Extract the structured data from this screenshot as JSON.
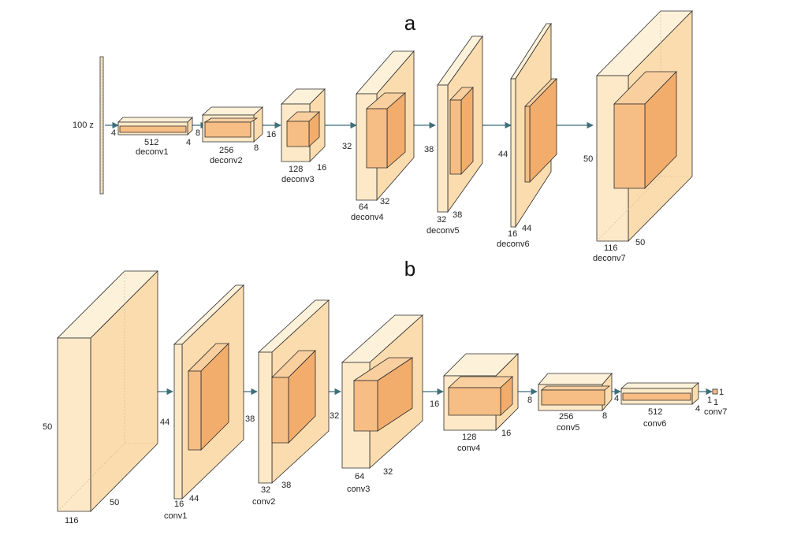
{
  "panels": {
    "a": {
      "title": "a",
      "input_label": "100 z",
      "layers": [
        {
          "name": "deconv1",
          "channels": "512",
          "size_a": "4",
          "size_b": "4"
        },
        {
          "name": "deconv2",
          "channels": "256",
          "size_a": "8",
          "size_b": "8"
        },
        {
          "name": "deconv3",
          "channels": "128",
          "size_a": "16",
          "size_b": "16"
        },
        {
          "name": "deconv4",
          "channels": "64",
          "size_a": "32",
          "size_b": "32"
        },
        {
          "name": "deconv5",
          "channels": "32",
          "size_a": "38",
          "size_b": "38"
        },
        {
          "name": "deconv6",
          "channels": "16",
          "size_a": "44",
          "size_b": "44"
        },
        {
          "name": "deconv7",
          "channels": "116",
          "size_a": "50",
          "size_b": "50"
        }
      ]
    },
    "b": {
      "title": "b",
      "input": {
        "channels": "116",
        "size_a": "50",
        "size_b": "50"
      },
      "layers": [
        {
          "name": "conv1",
          "channels": "16",
          "size_a": "44",
          "size_b": "44"
        },
        {
          "name": "conv2",
          "channels": "32",
          "size_a": "38",
          "size_b": "38"
        },
        {
          "name": "conv3",
          "channels": "64",
          "size_a": "32",
          "size_b": "32"
        },
        {
          "name": "conv4",
          "channels": "128",
          "size_a": "16",
          "size_b": "16"
        },
        {
          "name": "conv5",
          "channels": "256",
          "size_a": "8",
          "size_b": "8"
        },
        {
          "name": "conv6",
          "channels": "512",
          "size_a": "4",
          "size_b": "4"
        },
        {
          "name": "conv7",
          "channels": "1",
          "size_a": "1",
          "size_b": "1"
        }
      ]
    }
  }
}
